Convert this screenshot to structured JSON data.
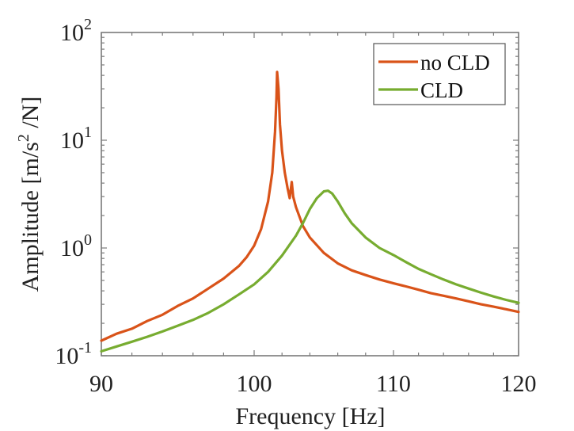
{
  "chart_data": {
    "type": "line",
    "title": "",
    "xlabel": "Frequency [Hz]",
    "ylabel_main": "Amplitude [m/s",
    "ylabel_sup": "2",
    "ylabel_tail": " /N]",
    "xscale": "linear",
    "yscale": "log",
    "xlim": [
      90,
      120
    ],
    "ylim": [
      0.1,
      100
    ],
    "x_ticks": [
      {
        "value": 90,
        "label": "90"
      },
      {
        "value": 100,
        "label": "100"
      },
      {
        "value": 110,
        "label": "110"
      },
      {
        "value": 120,
        "label": "120"
      }
    ],
    "y_ticks": [
      {
        "value": 0.1,
        "base": "10",
        "exp": "-1"
      },
      {
        "value": 1,
        "base": "10",
        "exp": "0"
      },
      {
        "value": 10,
        "base": "10",
        "exp": "1"
      },
      {
        "value": 100,
        "base": "10",
        "exp": "2"
      }
    ],
    "grid": false,
    "legend_position": "top-right",
    "series": [
      {
        "name": "no CLD",
        "color": "#D95319",
        "x": [
          90,
          91,
          92,
          93,
          94,
          95,
          96,
          97,
          98,
          99,
          99.5,
          100,
          100.5,
          101,
          101.3,
          101.5,
          101.6,
          101.65,
          101.75,
          101.85,
          102.0,
          102.2,
          102.4,
          102.55,
          102.7,
          102.8,
          103.0,
          103.5,
          104,
          105,
          106,
          107,
          108,
          109,
          110,
          111,
          112,
          113,
          114,
          115,
          116,
          117,
          118,
          119,
          120
        ],
        "y": [
          0.138,
          0.16,
          0.178,
          0.21,
          0.24,
          0.29,
          0.34,
          0.42,
          0.52,
          0.68,
          0.82,
          1.05,
          1.5,
          2.7,
          5.0,
          12,
          25,
          43,
          30,
          14,
          8.0,
          5.0,
          3.6,
          2.9,
          4.1,
          3.0,
          2.4,
          1.6,
          1.25,
          0.9,
          0.72,
          0.62,
          0.56,
          0.51,
          0.47,
          0.44,
          0.41,
          0.38,
          0.36,
          0.34,
          0.32,
          0.3,
          0.285,
          0.27,
          0.255
        ]
      },
      {
        "name": "CLD",
        "color": "#77AC30",
        "x": [
          90,
          91,
          92,
          93,
          94,
          95,
          96,
          97,
          98,
          99,
          100,
          101,
          102,
          103,
          103.5,
          104,
          104.5,
          105,
          105.3,
          105.6,
          106,
          106.5,
          107,
          108,
          109,
          110,
          111,
          112,
          113,
          114,
          115,
          116,
          117,
          118,
          119,
          120
        ],
        "y": [
          0.11,
          0.122,
          0.135,
          0.15,
          0.168,
          0.19,
          0.215,
          0.25,
          0.3,
          0.37,
          0.46,
          0.6,
          0.85,
          1.3,
          1.7,
          2.3,
          2.9,
          3.35,
          3.4,
          3.2,
          2.7,
          2.1,
          1.7,
          1.25,
          1.0,
          0.86,
          0.74,
          0.64,
          0.57,
          0.51,
          0.46,
          0.42,
          0.385,
          0.355,
          0.33,
          0.31
        ]
      }
    ]
  }
}
